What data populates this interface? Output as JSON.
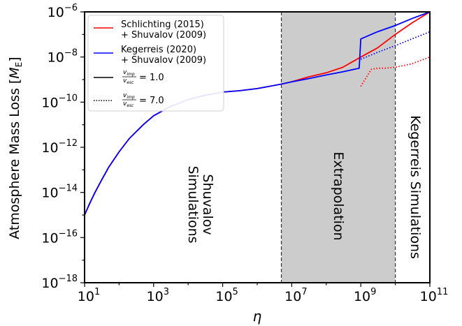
{
  "chart_data": {
    "type": "line",
    "xlabel": "η",
    "ylabel_main": "Atmosphere Mass Loss [",
    "ylabel_unit": "M",
    "ylabel_sub": "E",
    "ylabel_end": "]",
    "xscale": "log",
    "yscale": "log",
    "xlim": [
      10,
      100000000000
    ],
    "ylim": [
      1e-18,
      1e-06
    ],
    "grid": false,
    "legend_position": "top-left",
    "x_ticks": [
      {
        "exp": "1",
        "value": 10
      },
      {
        "exp": "3",
        "value": 1000
      },
      {
        "exp": "5",
        "value": 100000
      },
      {
        "exp": "7",
        "value": 10000000
      },
      {
        "exp": "9",
        "value": 1000000000
      },
      {
        "exp": "11",
        "value": 100000000000
      }
    ],
    "y_ticks": [
      {
        "exp": "−6",
        "value": 1e-06
      },
      {
        "exp": "−8",
        "value": 1e-08
      },
      {
        "exp": "−10",
        "value": 1e-10
      },
      {
        "exp": "−12",
        "value": 1e-12
      },
      {
        "exp": "−14",
        "value": 1e-14
      },
      {
        "exp": "−16",
        "value": 1e-16
      },
      {
        "exp": "−18",
        "value": 1e-18
      }
    ],
    "tick_base": "10",
    "regions": [
      {
        "label": "Shuvalov",
        "label2": "Simulations",
        "x_range": [
          10,
          10000000
        ]
      },
      {
        "label": "Extrapolation",
        "x_range": [
          5000000,
          10000000000
        ],
        "color": "#cccccc"
      },
      {
        "label": "Kegerreis Simulations",
        "x_range": [
          10000000000,
          100000000000
        ]
      }
    ],
    "dividers": [
      5000000,
      10000000000
    ],
    "legend": {
      "schlichting_l1": "Schlichting (2015)",
      "schlichting_l2": "+ Shuvalov (2009)",
      "kegerreis_l1": "Kegerreis (2020)",
      "kegerreis_l2": "+ Shuvalov (2009)",
      "ratio_num": "v",
      "ratio_num_sub": "imp",
      "ratio_den": "v",
      "ratio_den_sub": "esc",
      "solid_value": "= 1.0",
      "dotted_value": "= 7.0"
    },
    "series": [
      {
        "name": "Schlichting (2015) + Shuvalov (2009), v_imp/v_esc = 1.0",
        "color": "#ff0000",
        "style": "solid",
        "x": [
          10,
          14,
          20,
          30,
          50,
          100,
          200,
          500,
          1000,
          3000,
          10000,
          30000,
          100000,
          300000,
          1000000,
          5000000,
          10000000,
          30000000,
          100000000,
          300000000,
          1000000000,
          3000000000,
          10000000000,
          30000000000,
          100000000000
        ],
        "y": [
          1e-15,
          3.2e-15,
          1e-14,
          3.2e-14,
          1.3e-13,
          6.3e-13,
          2.5e-12,
          1e-11,
          2.5e-11,
          6.3e-11,
          1.3e-10,
          2e-10,
          2.8e-10,
          3.2e-10,
          4e-10,
          6.3e-10,
          8e-10,
          1.3e-09,
          2e-09,
          3.5e-09,
          1e-08,
          2.5e-08,
          1e-07,
          3.2e-07,
          1e-06
        ]
      },
      {
        "name": "Kegerreis (2020) + Shuvalov (2009), v_imp/v_esc = 1.0",
        "color": "#0000ff",
        "style": "solid",
        "x": [
          10,
          14,
          20,
          30,
          50,
          100,
          200,
          500,
          1000,
          3000,
          10000,
          30000,
          100000,
          300000,
          1000000,
          5000000,
          10000000,
          30000000,
          100000000,
          300000000,
          900000000,
          1000000000,
          3000000000,
          10000000000,
          30000000000,
          100000000000
        ],
        "y": [
          1e-15,
          3.2e-15,
          1e-14,
          3.2e-14,
          1.3e-13,
          6.3e-13,
          2.5e-12,
          1e-11,
          2.5e-11,
          6.3e-11,
          1.3e-10,
          2e-10,
          2.8e-10,
          3.2e-10,
          4e-10,
          6.3e-10,
          7.9e-10,
          1.1e-09,
          1.6e-09,
          2.2e-09,
          3.2e-09,
          6.3e-08,
          1.3e-07,
          2.5e-07,
          5e-07,
          1e-06
        ]
      },
      {
        "name": "Schlichting (2015) + Shuvalov (2009), v_imp/v_esc = 7.0",
        "color": "#ff0000",
        "style": "dotted",
        "x": [
          1000000000,
          2000000000,
          3000000000,
          5000000000,
          10000000000,
          30000000000,
          100000000000
        ],
        "y": [
          5e-10,
          2.8e-09,
          3.2e-09,
          3.2e-09,
          3.5e-09,
          5e-09,
          1e-08
        ]
      },
      {
        "name": "Kegerreis (2020) + Shuvalov (2009), v_imp/v_esc = 7.0",
        "color": "#0000ff",
        "style": "dotted",
        "x": [
          1000000000,
          3000000000,
          10000000000,
          30000000000,
          100000000000
        ],
        "y": [
          8e-09,
          1.6e-08,
          3.2e-08,
          6.3e-08,
          1.3e-07
        ]
      }
    ]
  }
}
